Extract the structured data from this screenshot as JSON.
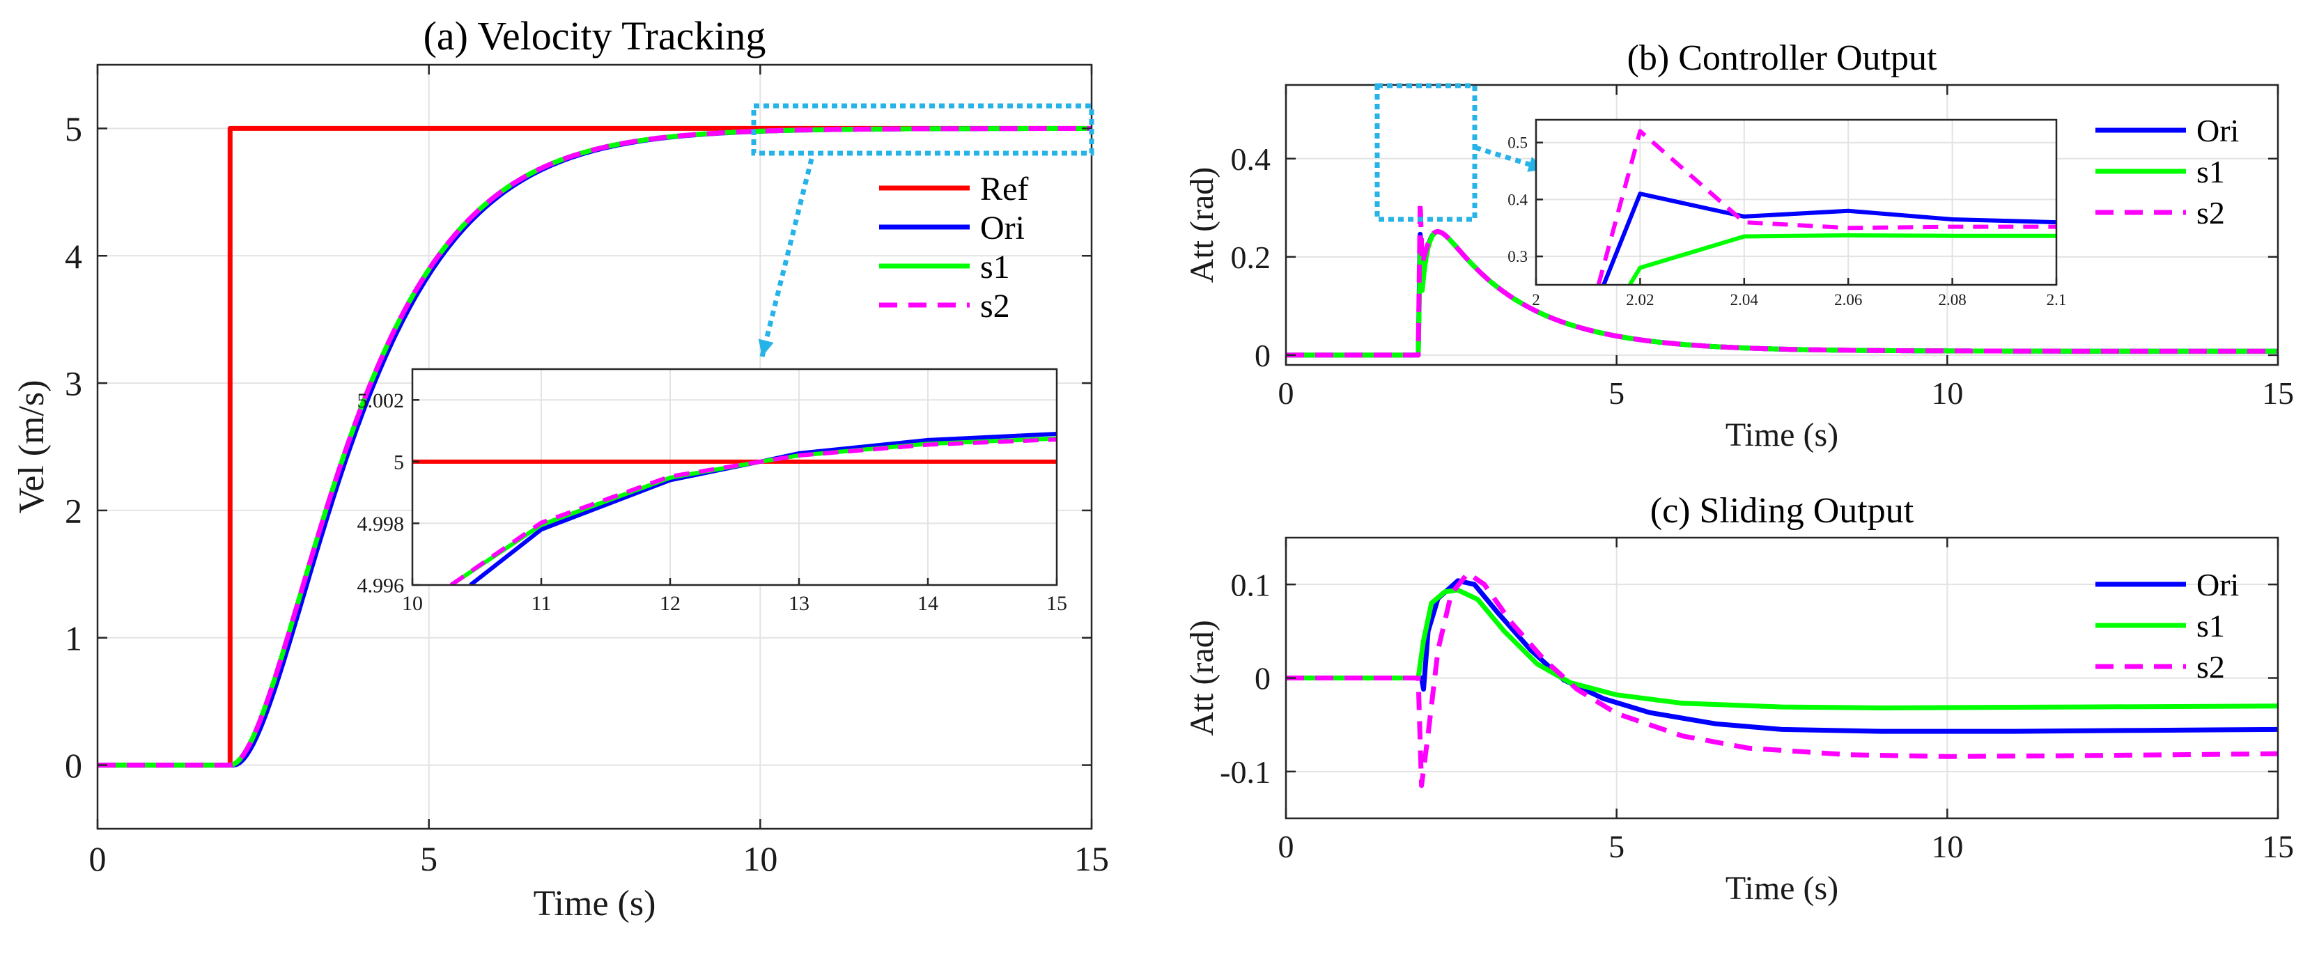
{
  "chart_data": [
    {
      "id": "a",
      "type": "line",
      "title": "(a) Velocity Tracking",
      "xlabel": "Time (s)",
      "ylabel": "Vel (m/s)",
      "xlim": [
        0,
        15
      ],
      "ylim": [
        -0.5,
        5.5
      ],
      "xticks": [
        "0",
        "5",
        "10",
        "15"
      ],
      "yticks": [
        "0",
        "1",
        "2",
        "3",
        "4",
        "5"
      ],
      "grid": true,
      "legend": "right-middle",
      "series": [
        {
          "name": "Ref",
          "color": "#ff0000",
          "dash": "solid",
          "model": "step",
          "t0": 2,
          "final": 5
        },
        {
          "name": "Ori",
          "color": "#0000ff",
          "dash": "solid",
          "model": "velocity",
          "t0": 2.05,
          "final": 5
        },
        {
          "name": "s1",
          "color": "#00ff00",
          "dash": "solid",
          "model": "velocity",
          "t0": 2.0,
          "final": 5
        },
        {
          "name": "s2",
          "color": "#ff00ff",
          "dash": "dashed",
          "model": "velocity",
          "t0": 2.0,
          "final": 5
        }
      ],
      "inset": {
        "xlim": [
          10,
          15
        ],
        "ylim": [
          4.996,
          5.003
        ],
        "xticks": [
          "10",
          "11",
          "12",
          "13",
          "14",
          "15"
        ],
        "yticks": [
          "4.996",
          "4.998",
          "5",
          "5.002"
        ],
        "series": [
          {
            "name": "Ref",
            "points": [
              [
                10,
                5
              ],
              [
                15,
                5
              ]
            ]
          },
          {
            "name": "Ori",
            "points": [
              [
                10.45,
                4.996
              ],
              [
                11,
                4.9978
              ],
              [
                12,
                4.9994
              ],
              [
                12.7,
                5.0
              ],
              [
                13,
                5.00027
              ],
              [
                14,
                5.0007
              ],
              [
                15,
                5.0009
              ]
            ]
          },
          {
            "name": "s1",
            "points": [
              [
                10.3,
                4.996
              ],
              [
                11,
                4.99795
              ],
              [
                12,
                4.99948
              ],
              [
                12.7,
                5.0
              ],
              [
                13,
                5.0002
              ],
              [
                14,
                5.00058
              ],
              [
                15,
                5.00075
              ]
            ]
          },
          {
            "name": "s2",
            "points": [
              [
                10.3,
                4.996
              ],
              [
                11,
                4.99802
              ],
              [
                12,
                4.99952
              ],
              [
                12.7,
                5.0
              ],
              [
                13,
                5.0002
              ],
              [
                14,
                5.00055
              ],
              [
                15,
                5.00072
              ]
            ]
          }
        ]
      }
    },
    {
      "id": "b",
      "type": "line",
      "title": "(b) Controller Output",
      "xlabel": "Time (s)",
      "ylabel": "Att (rad)",
      "xlim": [
        0,
        15
      ],
      "ylim": [
        -0.02,
        0.55
      ],
      "xticks": [
        "0",
        "5",
        "10",
        "15"
      ],
      "yticks": [
        "0",
        "0.2",
        "0.4"
      ],
      "grid": true,
      "legend": "top-right",
      "series": [
        {
          "name": "Ori",
          "color": "#0000ff",
          "dash": "solid",
          "model": "ctrl",
          "peak": 0.41
        },
        {
          "name": "s1",
          "color": "#00ff00",
          "dash": "solid",
          "model": "ctrl",
          "peak": 0.34
        },
        {
          "name": "s2",
          "color": "#ff00ff",
          "dash": "dashed",
          "model": "ctrl",
          "peak": 0.52
        }
      ],
      "inset": {
        "xlim": [
          2,
          2.1
        ],
        "ylim": [
          0.25,
          0.54
        ],
        "xticks": [
          "2",
          "2.02",
          "2.04",
          "2.06",
          "2.08",
          "2.1"
        ],
        "yticks": [
          "0.3",
          "0.4",
          "0.5"
        ],
        "series": [
          {
            "name": "Ori",
            "points": [
              [
                2.013,
                0.25
              ],
              [
                2.02,
                0.41
              ],
              [
                2.04,
                0.37
              ],
              [
                2.06,
                0.38
              ],
              [
                2.08,
                0.365
              ],
              [
                2.1,
                0.36
              ]
            ]
          },
          {
            "name": "s1",
            "points": [
              [
                2.018,
                0.25
              ],
              [
                2.02,
                0.28
              ],
              [
                2.04,
                0.335
              ],
              [
                2.06,
                0.337
              ],
              [
                2.08,
                0.336
              ],
              [
                2.1,
                0.336
              ]
            ]
          },
          {
            "name": "s2",
            "points": [
              [
                2.012,
                0.25
              ],
              [
                2.02,
                0.52
              ],
              [
                2.04,
                0.36
              ],
              [
                2.06,
                0.35
              ],
              [
                2.08,
                0.352
              ],
              [
                2.1,
                0.352
              ]
            ]
          }
        ]
      }
    },
    {
      "id": "c",
      "type": "line",
      "title": "(c) Sliding Output",
      "xlabel": "Time (s)",
      "ylabel": "Att (rad)",
      "xlim": [
        0,
        15
      ],
      "ylim": [
        -0.15,
        0.15
      ],
      "xticks": [
        "0",
        "5",
        "10",
        "15"
      ],
      "yticks": [
        "-0.1",
        "0",
        "0.1"
      ],
      "grid": true,
      "legend": "top-right",
      "series": [
        {
          "name": "Ori",
          "color": "#0000ff",
          "dash": "solid",
          "model": "slide",
          "points": [
            [
              0,
              0
            ],
            [
              2.05,
              0
            ],
            [
              2.08,
              -0.012
            ],
            [
              2.15,
              0.05
            ],
            [
              2.3,
              0.085
            ],
            [
              2.6,
              0.104
            ],
            [
              2.85,
              0.1
            ],
            [
              3.2,
              0.07
            ],
            [
              3.7,
              0.03
            ],
            [
              4.2,
              -0.002
            ],
            [
              4.8,
              -0.022
            ],
            [
              5.5,
              -0.037
            ],
            [
              6.5,
              -0.049
            ],
            [
              7.5,
              -0.055
            ],
            [
              9,
              -0.057
            ],
            [
              11,
              -0.057
            ],
            [
              13,
              -0.056
            ],
            [
              15,
              -0.055
            ]
          ]
        },
        {
          "name": "s1",
          "color": "#00ff00",
          "dash": "solid",
          "model": "slide",
          "points": [
            [
              0,
              0
            ],
            [
              2.0,
              0
            ],
            [
              2.08,
              0.04
            ],
            [
              2.2,
              0.08
            ],
            [
              2.4,
              0.092
            ],
            [
              2.6,
              0.094
            ],
            [
              2.9,
              0.084
            ],
            [
              3.3,
              0.05
            ],
            [
              3.8,
              0.015
            ],
            [
              4.3,
              -0.005
            ],
            [
              5,
              -0.018
            ],
            [
              6,
              -0.027
            ],
            [
              7.5,
              -0.031
            ],
            [
              9,
              -0.032
            ],
            [
              12,
              -0.031
            ],
            [
              15,
              -0.03
            ]
          ]
        },
        {
          "name": "s2",
          "color": "#ff00ff",
          "dash": "dashed",
          "model": "slide",
          "points": [
            [
              0,
              0
            ],
            [
              2.0,
              0
            ],
            [
              2.05,
              -0.115
            ],
            [
              2.15,
              -0.06
            ],
            [
              2.3,
              0.03
            ],
            [
              2.5,
              0.09
            ],
            [
              2.75,
              0.112
            ],
            [
              3.0,
              0.1
            ],
            [
              3.4,
              0.06
            ],
            [
              3.9,
              0.02
            ],
            [
              4.4,
              -0.012
            ],
            [
              5,
              -0.038
            ],
            [
              6,
              -0.062
            ],
            [
              7,
              -0.075
            ],
            [
              8.5,
              -0.082
            ],
            [
              10,
              -0.084
            ],
            [
              12,
              -0.083
            ],
            [
              15,
              -0.081
            ]
          ]
        }
      ]
    }
  ]
}
